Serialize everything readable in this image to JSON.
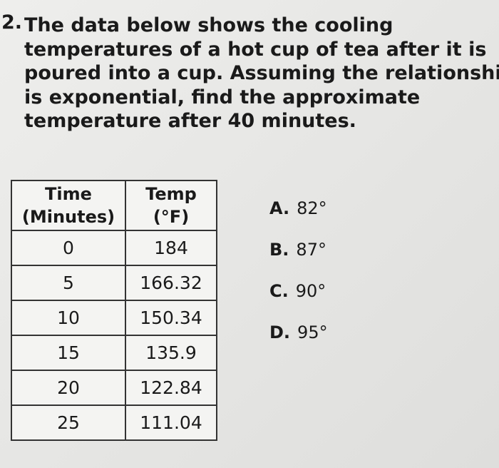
{
  "question": {
    "number": "2.",
    "lines": [
      "The data below shows the cooling",
      "temperatures of a hot cup of tea after it is",
      "poured into a cup. Assuming the relationship",
      "is exponential, find the approximate",
      "temperature after 40 minutes."
    ]
  },
  "table": {
    "header": [
      [
        "Time",
        "(Minutes)"
      ],
      [
        "Temp",
        "(°F)"
      ]
    ],
    "rows": [
      [
        "0",
        "184"
      ],
      [
        "5",
        "166.32"
      ],
      [
        "10",
        "150.34"
      ],
      [
        "15",
        "135.9"
      ],
      [
        "20",
        "122.84"
      ],
      [
        "25",
        "111.04"
      ]
    ]
  },
  "options": [
    {
      "label": "A.",
      "text": "82°"
    },
    {
      "label": "B.",
      "text": "87°"
    },
    {
      "label": "C.",
      "text": "90°"
    },
    {
      "label": "D.",
      "text": "95°"
    }
  ]
}
